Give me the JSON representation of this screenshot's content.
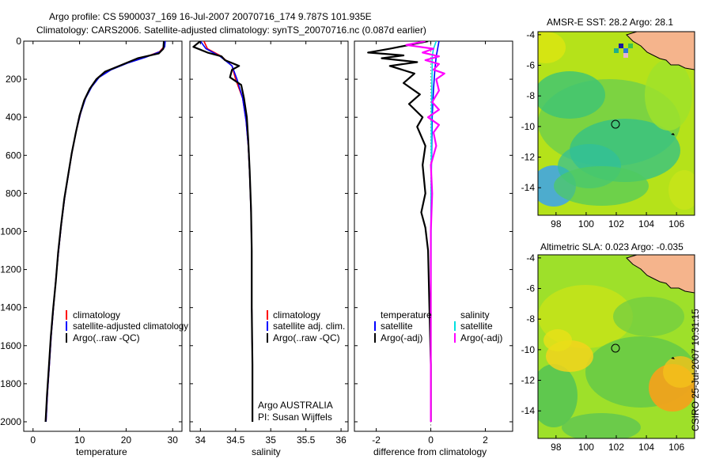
{
  "header": {
    "line1": "Argo profile: CS 5900037_169 16-Jul-2007 20070716_174 9.787S 101.935E",
    "line2": "Climatology: CARS2006. Satellite-adjusted climatology: synTS_20070716.nc (0.087d earlier)"
  },
  "stamp": "CSIRO 25-Jul-2007 10:31:15",
  "colors": {
    "clim": "#ff0000",
    "sat": "#0000ff",
    "argo": "#000000",
    "salSat": "#00e0e0",
    "salArgo": "#ff00ff",
    "land": "#f5b48c"
  },
  "chart_data": [
    {
      "type": "line",
      "name": "temperature",
      "xlabel": "temperature",
      "xlim": [
        -2,
        32
      ],
      "ylim": [
        2050,
        0
      ],
      "xticks": [
        0,
        10,
        20,
        30
      ],
      "xtick_labels": [
        "0",
        "10",
        "20",
        "30"
      ],
      "yticks": [
        0,
        200,
        400,
        600,
        800,
        1000,
        1200,
        1400,
        1600,
        1800,
        2000
      ],
      "ytick_labels": [
        "0",
        "200",
        "400",
        "600",
        "800",
        "1000",
        "1200",
        "1400",
        "1600",
        "1800",
        "2000"
      ],
      "legend": [
        "climatology",
        "satellite-adjusted climatology",
        "Argo(..raw -QC)"
      ],
      "series": [
        {
          "name": "climatology",
          "color": "#ff0000",
          "points": [
            [
              28.2,
              0
            ],
            [
              28.1,
              30
            ],
            [
              27.2,
              55
            ],
            [
              24,
              85
            ],
            [
              20,
              115
            ],
            [
              16.5,
              150
            ],
            [
              14,
              190
            ],
            [
              12.5,
              240
            ],
            [
              11.2,
              300
            ],
            [
              10.2,
              380
            ],
            [
              9.3,
              470
            ],
            [
              8.4,
              580
            ],
            [
              7.6,
              700
            ],
            [
              6.8,
              820
            ],
            [
              6.1,
              960
            ],
            [
              5.5,
              1100
            ],
            [
              4.9,
              1250
            ],
            [
              4.4,
              1400
            ],
            [
              3.9,
              1550
            ],
            [
              3.5,
              1700
            ],
            [
              3.1,
              1850
            ],
            [
              2.8,
              2000
            ]
          ]
        },
        {
          "name": "satellite",
          "color": "#0000ff",
          "points": [
            [
              28.4,
              0
            ],
            [
              28.3,
              30
            ],
            [
              27.3,
              55
            ],
            [
              24.2,
              85
            ],
            [
              20.3,
              115
            ],
            [
              16.8,
              150
            ],
            [
              14.2,
              190
            ],
            [
              12.6,
              240
            ],
            [
              11.3,
              300
            ],
            [
              10.2,
              380
            ],
            [
              9.3,
              470
            ],
            [
              8.4,
              580
            ],
            [
              7.6,
              700
            ],
            [
              6.8,
              820
            ],
            [
              6.1,
              960
            ],
            [
              5.5,
              1100
            ],
            [
              4.9,
              1250
            ],
            [
              4.4,
              1400
            ],
            [
              3.9,
              1550
            ],
            [
              3.5,
              1700
            ],
            [
              3.1,
              1850
            ],
            [
              2.8,
              2000
            ]
          ]
        },
        {
          "name": "Argo",
          "color": "#000000",
          "points": [
            [
              28.1,
              0
            ],
            [
              28.0,
              40
            ],
            [
              27,
              65
            ],
            [
              22.5,
              90
            ],
            [
              19,
              125
            ],
            [
              15.5,
              160
            ],
            [
              13.6,
              200
            ],
            [
              12.2,
              250
            ],
            [
              11,
              310
            ],
            [
              10,
              390
            ],
            [
              9.2,
              480
            ],
            [
              8.3,
              590
            ],
            [
              7.5,
              710
            ],
            [
              6.7,
              830
            ],
            [
              6,
              970
            ],
            [
              5.4,
              1110
            ],
            [
              4.9,
              1260
            ],
            [
              4.3,
              1410
            ],
            [
              3.8,
              1560
            ],
            [
              3.4,
              1710
            ],
            [
              3.0,
              1860
            ],
            [
              2.7,
              2000
            ]
          ]
        }
      ]
    },
    {
      "type": "line",
      "name": "salinity",
      "xlabel": "salinity",
      "xlim": [
        33.85,
        36.1
      ],
      "ylim": [
        2050,
        0
      ],
      "xticks": [
        34,
        34.5,
        35,
        35.5,
        36
      ],
      "xtick_labels": [
        "34",
        "34.5",
        "35",
        "35.5",
        "36"
      ],
      "legend": [
        "climatology",
        "satellite adj. clim.",
        "Argo(..raw -QC)"
      ],
      "annotation": [
        "Argo AUSTRALIA",
        "PI: Susan Wijffels"
      ],
      "series": [
        {
          "name": "climatology",
          "color": "#ff0000",
          "points": [
            [
              34.05,
              0
            ],
            [
              34.1,
              40
            ],
            [
              34.3,
              80
            ],
            [
              34.45,
              130
            ],
            [
              34.5,
              200
            ],
            [
              34.6,
              300
            ],
            [
              34.65,
              420
            ],
            [
              34.68,
              550
            ],
            [
              34.7,
              700
            ],
            [
              34.72,
              900
            ],
            [
              34.73,
              1100
            ],
            [
              34.73,
              1400
            ],
            [
              34.74,
              1700
            ],
            [
              34.74,
              2000
            ]
          ]
        },
        {
          "name": "satellite",
          "color": "#0000ff",
          "points": [
            [
              34.0,
              0
            ],
            [
              34.08,
              40
            ],
            [
              34.28,
              80
            ],
            [
              34.45,
              130
            ],
            [
              34.52,
              200
            ],
            [
              34.6,
              300
            ],
            [
              34.65,
              420
            ],
            [
              34.68,
              550
            ],
            [
              34.7,
              700
            ],
            [
              34.72,
              900
            ],
            [
              34.73,
              1100
            ],
            [
              34.73,
              1400
            ],
            [
              34.74,
              1700
            ],
            [
              34.74,
              2000
            ]
          ]
        },
        {
          "name": "Argo",
          "color": "#000000",
          "points": [
            [
              34.0,
              0
            ],
            [
              33.9,
              30
            ],
            [
              34.1,
              60
            ],
            [
              34.3,
              80
            ],
            [
              34.35,
              100
            ],
            [
              34.55,
              130
            ],
            [
              34.45,
              150
            ],
            [
              34.42,
              190
            ],
            [
              34.58,
              230
            ],
            [
              34.62,
              300
            ],
            [
              34.66,
              400
            ],
            [
              34.68,
              520
            ],
            [
              34.7,
              680
            ],
            [
              34.72,
              880
            ],
            [
              34.73,
              1100
            ],
            [
              34.73,
              1400
            ],
            [
              34.74,
              1700
            ],
            [
              34.74,
              2000
            ]
          ]
        }
      ]
    },
    {
      "type": "line",
      "name": "difference",
      "xlabel": "difference from climatology",
      "xlim": [
        -2.8,
        3.0
      ],
      "ylim": [
        2050,
        0
      ],
      "xticks": [
        -2,
        0,
        2
      ],
      "xtick_labels": [
        "-2",
        "0",
        "2"
      ],
      "legend_headers": [
        "temperature",
        "salinity"
      ],
      "legend": [
        "satellite",
        "Argo(-adj)",
        "satellite",
        "Argo(-adj)"
      ],
      "series": [
        {
          "name": "temperature satellite",
          "color": "#0000ff",
          "points": [
            [
              0.3,
              0
            ],
            [
              0.25,
              40
            ],
            [
              0.2,
              80
            ],
            [
              0.15,
              150
            ],
            [
              0.1,
              250
            ],
            [
              0.05,
              400
            ],
            [
              0.02,
              700
            ],
            [
              0.0,
              1000
            ],
            [
              0.0,
              1500
            ],
            [
              0.0,
              2000
            ]
          ]
        },
        {
          "name": "temperature Argo",
          "color": "#000000",
          "points": [
            [
              -0.1,
              0
            ],
            [
              -1.5,
              40
            ],
            [
              -2.3,
              60
            ],
            [
              -1,
              75
            ],
            [
              -1.8,
              90
            ],
            [
              -0.5,
              110
            ],
            [
              -1.5,
              130
            ],
            [
              -0.6,
              170
            ],
            [
              -1,
              220
            ],
            [
              -0.4,
              280
            ],
            [
              -0.8,
              330
            ],
            [
              -0.3,
              400
            ],
            [
              -0.5,
              450
            ],
            [
              -0.2,
              550
            ],
            [
              -0.3,
              650
            ],
            [
              -0.2,
              800
            ],
            [
              -0.35,
              900
            ],
            [
              -0.2,
              980
            ],
            [
              -0.1,
              1100
            ],
            [
              -0.05,
              1400
            ],
            [
              0,
              1700
            ],
            [
              0,
              2000
            ]
          ]
        },
        {
          "name": "salinity satellite",
          "color": "#00e0e0",
          "points": [
            [
              0.2,
              0
            ],
            [
              0.1,
              40
            ],
            [
              0.05,
              80
            ],
            [
              0.05,
              150
            ],
            [
              0.03,
              300
            ],
            [
              0.02,
              600
            ],
            [
              0.01,
              1000
            ],
            [
              0.0,
              1500
            ],
            [
              0.0,
              2000
            ]
          ]
        },
        {
          "name": "salinity Argo",
          "color": "#ff00ff",
          "points": [
            [
              -0.2,
              0
            ],
            [
              -0.9,
              20
            ],
            [
              0.1,
              40
            ],
            [
              -0.3,
              60
            ],
            [
              0.3,
              80
            ],
            [
              -0.2,
              100
            ],
            [
              0.3,
              120
            ],
            [
              0.1,
              150
            ],
            [
              0.5,
              170
            ],
            [
              0.2,
              200
            ],
            [
              0.3,
              260
            ],
            [
              0.05,
              320
            ],
            [
              0.3,
              360
            ],
            [
              -0.1,
              400
            ],
            [
              0.3,
              440
            ],
            [
              0.1,
              480
            ],
            [
              0.2,
              550
            ],
            [
              0.0,
              650
            ],
            [
              0.05,
              800
            ],
            [
              0.0,
              1000
            ],
            [
              0.0,
              1500
            ],
            [
              0.0,
              2000
            ]
          ]
        }
      ]
    },
    {
      "type": "heatmap",
      "name": "sst-map",
      "title": "AMSR-E SST: 28.2 Argo: 28.1",
      "xlim": [
        96.8,
        107.2
      ],
      "ylim": [
        -15.8,
        -3.8
      ],
      "xticks": [
        98,
        100,
        102,
        104,
        106
      ],
      "yticks": [
        -4,
        -6,
        -8,
        -10,
        -12,
        -14
      ],
      "marker": [
        101.935,
        -9.787
      ]
    },
    {
      "type": "heatmap",
      "name": "sla-map",
      "title": "Altimetric SLA: 0.023 Argo: -0.035",
      "xlim": [
        96.8,
        107.2
      ],
      "ylim": [
        -15.8,
        -3.8
      ],
      "xticks": [
        98,
        100,
        102,
        104,
        106
      ],
      "yticks": [
        -4,
        -6,
        -8,
        -10,
        -12,
        -14
      ],
      "marker": [
        101.935,
        -9.787
      ]
    }
  ]
}
